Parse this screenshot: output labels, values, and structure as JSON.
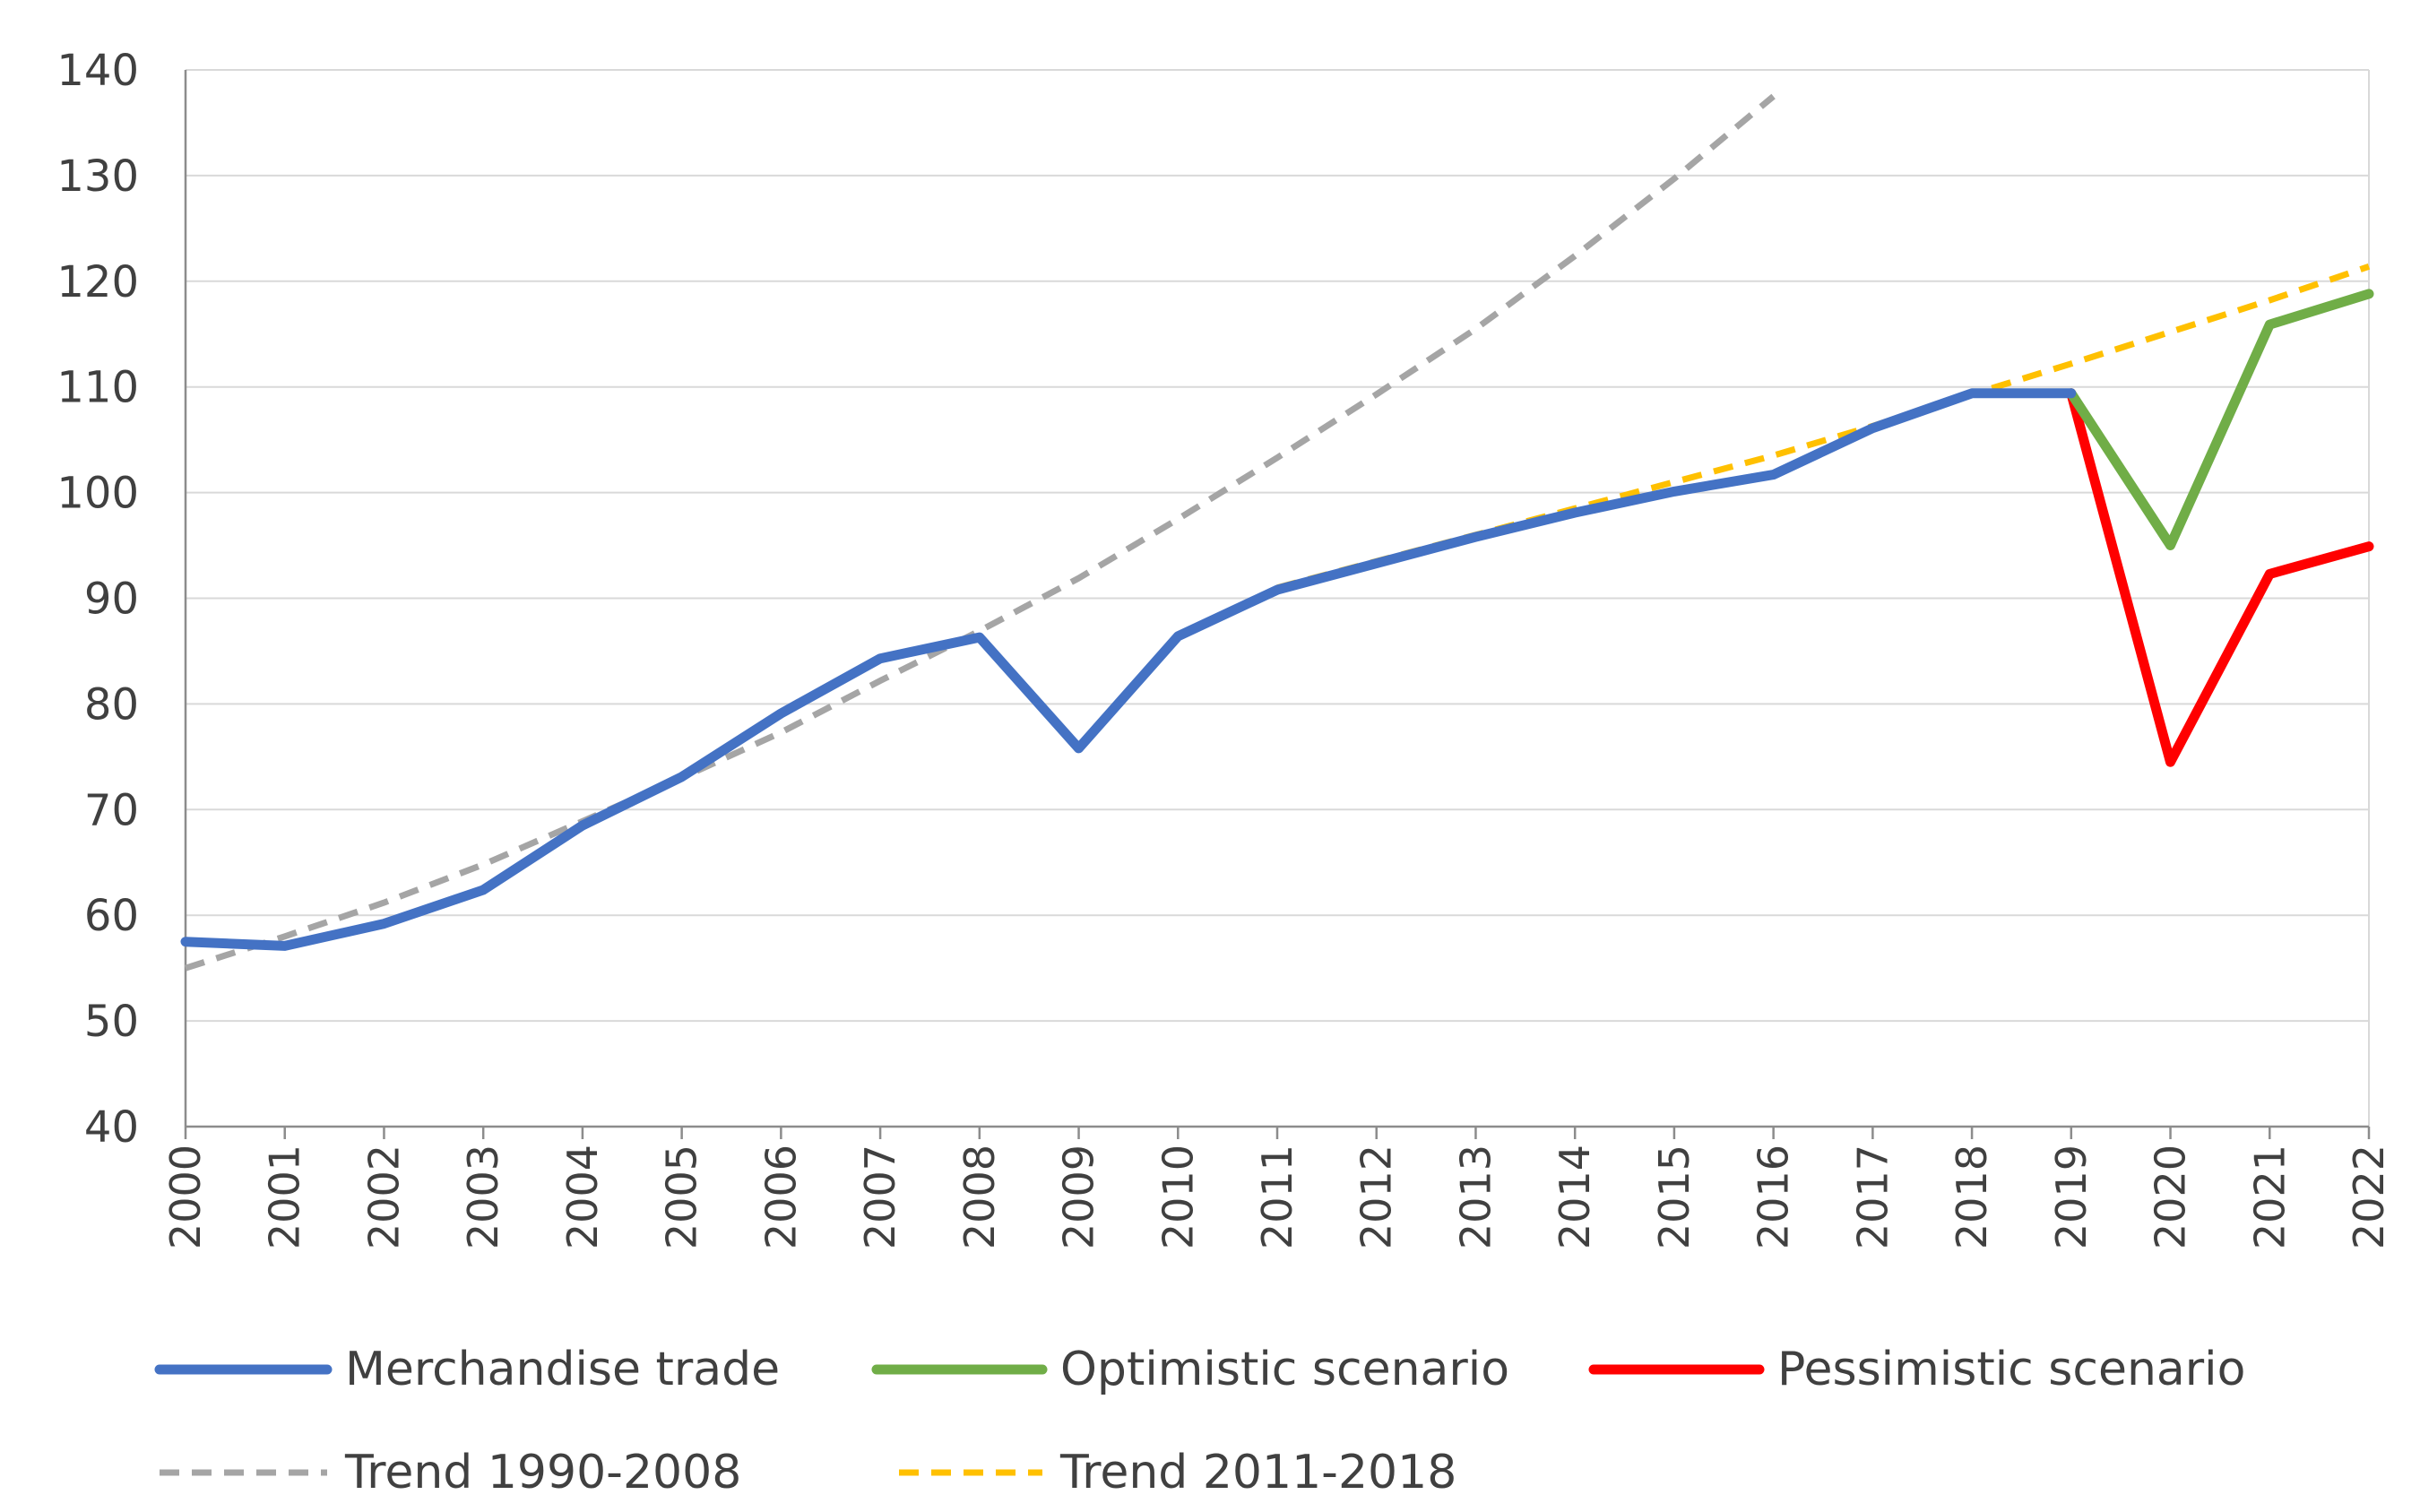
{
  "chart_data": {
    "type": "line",
    "title": "",
    "xlabel": "",
    "ylabel": "",
    "ylim": [
      40,
      140
    ],
    "yticks": [
      40,
      50,
      60,
      70,
      80,
      90,
      100,
      110,
      120,
      130,
      140
    ],
    "categories": [
      "2000",
      "2001",
      "2002",
      "2003",
      "2004",
      "2005",
      "2006",
      "2007",
      "2008",
      "2009",
      "2010",
      "2011",
      "2012",
      "2013",
      "2014",
      "2015",
      "2016",
      "2017",
      "2018",
      "2019",
      "2020",
      "2021",
      "2022"
    ],
    "grid": true,
    "legend_position": "bottom",
    "series": [
      {
        "name": "Merchandise trade",
        "color": "#4472C4",
        "style": "solid",
        "x": [
          "2000",
          "2001",
          "2002",
          "2003",
          "2004",
          "2005",
          "2006",
          "2007",
          "2008",
          "2009",
          "2010",
          "2011",
          "2012",
          "2013",
          "2014",
          "2015",
          "2016",
          "2017",
          "2018",
          "2019"
        ],
        "values": [
          57.5,
          57.1,
          59.2,
          62.4,
          68.5,
          73.1,
          79.1,
          84.3,
          86.3,
          75.8,
          86.4,
          90.8,
          93.3,
          95.8,
          98.1,
          100.1,
          101.7,
          106.1,
          109.4,
          109.4
        ]
      },
      {
        "name": "Optimistic scenario",
        "color": "#70AD47",
        "style": "solid",
        "x": [
          "2019",
          "2020",
          "2021",
          "2022"
        ],
        "values": [
          109.4,
          95.0,
          115.9,
          118.8
        ]
      },
      {
        "name": "Pessimistic scenario",
        "color": "#FF0000",
        "style": "solid",
        "x": [
          "2019",
          "2020",
          "2021",
          "2022"
        ],
        "values": [
          109.4,
          74.5,
          92.3,
          94.9
        ]
      },
      {
        "name": "Trend 1990-2008",
        "color": "#A5A5A5",
        "style": "dashed",
        "x": [
          "2000",
          "2001",
          "2002",
          "2003",
          "2004",
          "2005",
          "2006",
          "2007",
          "2008",
          "2009",
          "2010",
          "2011",
          "2012",
          "2013",
          "2014",
          "2015",
          "2016"
        ],
        "values": [
          55.0,
          58.0,
          61.2,
          64.8,
          68.9,
          73.0,
          77.3,
          82.2,
          86.9,
          91.9,
          97.5,
          103.3,
          109.3,
          115.5,
          122.4,
          129.7,
          137.5
        ]
      },
      {
        "name": "Trend 2011-2018",
        "color": "#FFC000",
        "style": "dashed",
        "x": [
          "2011",
          "2012",
          "2013",
          "2014",
          "2015",
          "2016",
          "2017",
          "2018",
          "2019",
          "2020",
          "2021",
          "2022"
        ],
        "values": [
          91.0,
          93.5,
          96.0,
          98.5,
          101.0,
          103.5,
          106.3,
          109.3,
          112.2,
          115.2,
          118.2,
          121.4
        ]
      }
    ]
  }
}
